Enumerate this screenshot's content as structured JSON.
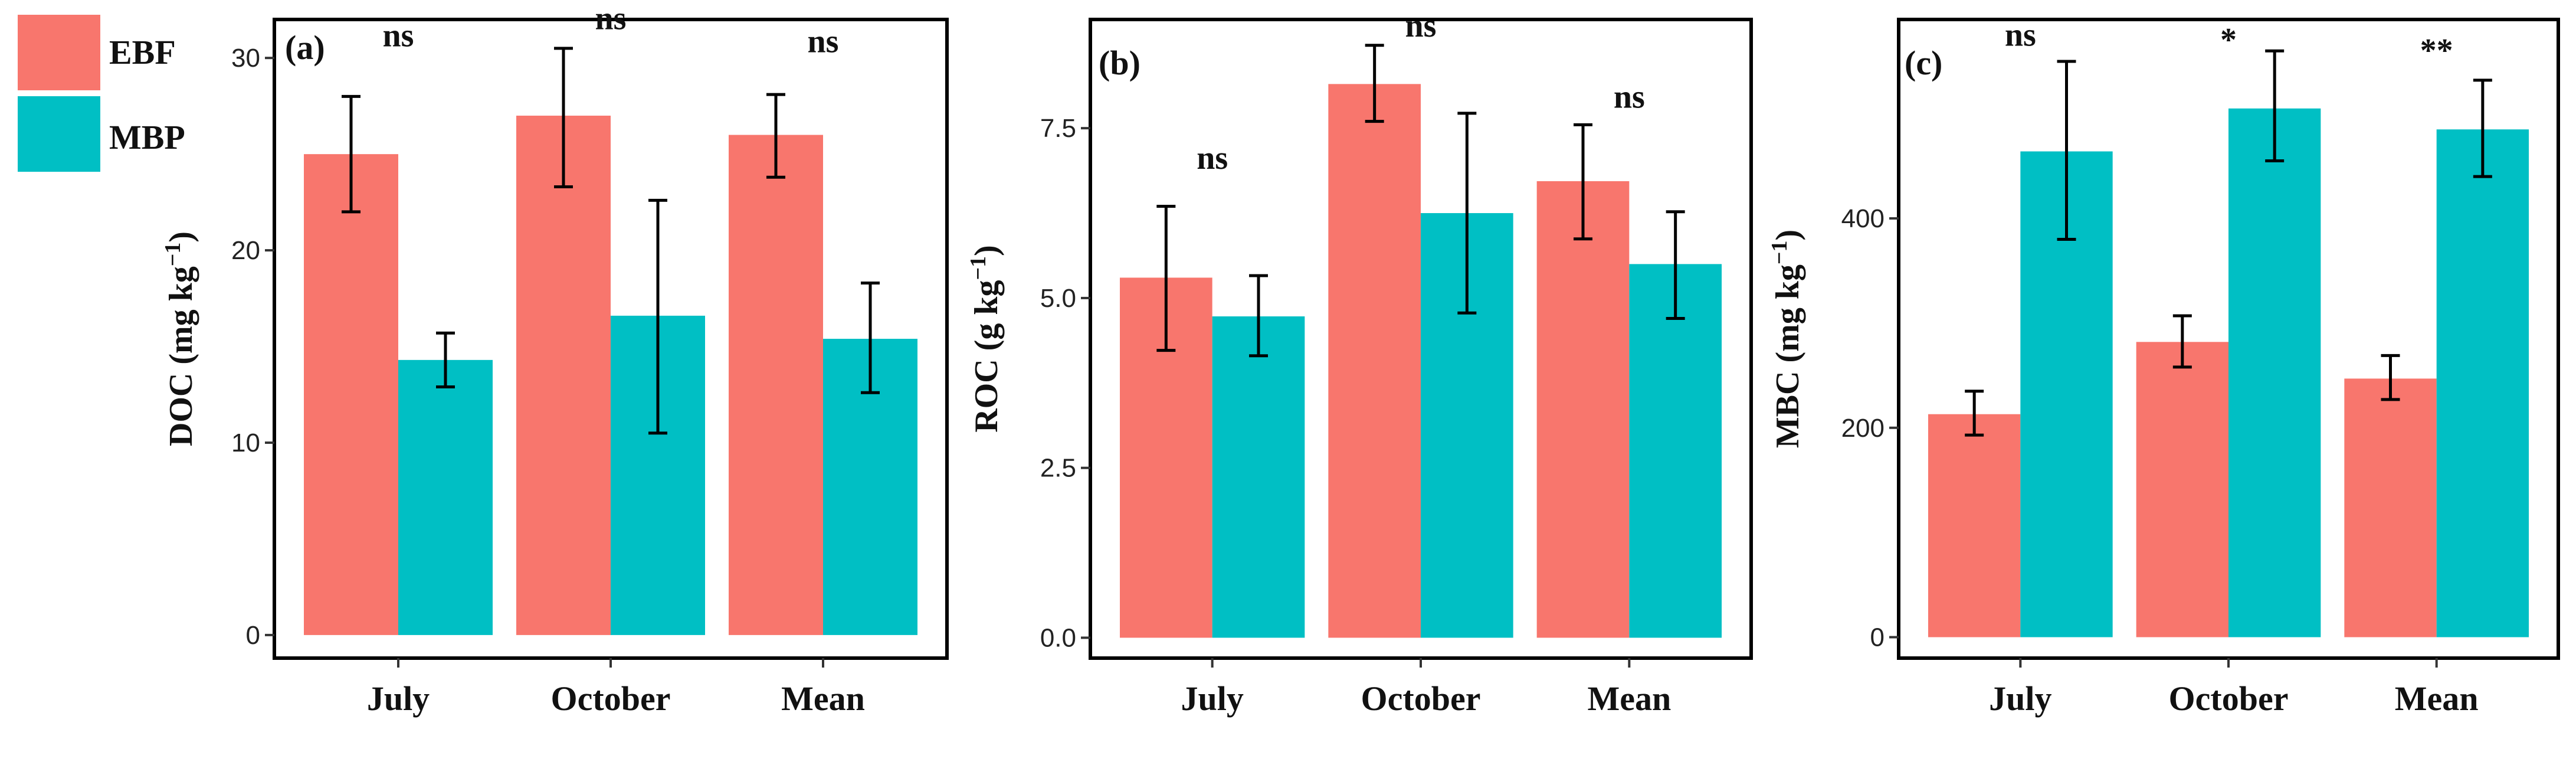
{
  "colors": {
    "EBF": "#F8766D",
    "MBP": "#00BFC4",
    "frame": "#000000",
    "error": "#000000"
  },
  "legend": {
    "position": "top-left",
    "items": [
      {
        "name": "EBF",
        "color": "#F8766D"
      },
      {
        "name": "MBP",
        "color": "#00BFC4"
      }
    ]
  },
  "chart_data": [
    {
      "type": "bar",
      "panel": "(a)",
      "ylabel": "DOC (mg kg",
      "ylabel_sup": "−1",
      "ylabel_end": ")",
      "categories": [
        "July",
        "October",
        "Mean"
      ],
      "ylim": [
        -1.2,
        32
      ],
      "yticks": [
        0,
        10,
        20,
        30
      ],
      "ytick_labels": [
        "0",
        "10",
        "20",
        "30"
      ],
      "series": [
        {
          "name": "EBF",
          "values": [
            25.0,
            27.0,
            26.0
          ],
          "err_low": [
            22.0,
            23.3,
            23.8
          ],
          "err_high": [
            28.0,
            30.5,
            28.1
          ]
        },
        {
          "name": "MBP",
          "values": [
            14.3,
            16.6,
            15.4
          ],
          "err_low": [
            12.9,
            10.5,
            12.6
          ],
          "err_high": [
            15.7,
            22.6,
            18.3
          ]
        }
      ],
      "significance": [
        {
          "label": "ns",
          "value": 30.6
        },
        {
          "label": "ns",
          "value": 31.5
        },
        {
          "label": "ns",
          "value": 30.3
        }
      ]
    },
    {
      "type": "bar",
      "panel": "(b)",
      "ylabel": "ROC (g kg",
      "ylabel_sup": "−1",
      "ylabel_end": ")",
      "categories": [
        "July",
        "October",
        "Mean"
      ],
      "ylim": [
        -0.3,
        9.1
      ],
      "yticks": [
        0,
        2.5,
        5,
        7.5
      ],
      "ytick_labels": [
        "0.0",
        "2.5",
        "5.0",
        "7.5"
      ],
      "series": [
        {
          "name": "EBF",
          "values": [
            5.3,
            8.15,
            6.72
          ],
          "err_low": [
            4.23,
            7.6,
            5.87
          ],
          "err_high": [
            6.35,
            8.72,
            7.55
          ]
        },
        {
          "name": "MBP",
          "values": [
            4.73,
            6.25,
            5.5
          ],
          "err_low": [
            4.15,
            4.78,
            4.7
          ],
          "err_high": [
            5.33,
            7.72,
            6.27
          ]
        }
      ],
      "significance": [
        {
          "label": "ns",
          "value": 6.9
        },
        {
          "label": "ns",
          "value": 8.85
        },
        {
          "label": "ns",
          "value": 7.8
        }
      ]
    },
    {
      "type": "bar",
      "panel": "(c)",
      "ylabel": "MBC (mg kg",
      "ylabel_sup": "−1",
      "ylabel_end": ")",
      "categories": [
        "July",
        "October",
        "Mean"
      ],
      "ylim": [
        -20,
        590
      ],
      "yticks": [
        0,
        200,
        400
      ],
      "ytick_labels": [
        "0",
        "200",
        "400"
      ],
      "series": [
        {
          "name": "EBF",
          "values": [
            213,
            282,
            247
          ],
          "err_low": [
            193,
            258,
            227
          ],
          "err_high": [
            235,
            307,
            269
          ]
        },
        {
          "name": "MBP",
          "values": [
            464,
            505,
            485
          ],
          "err_low": [
            380,
            455,
            440
          ],
          "err_high": [
            550,
            560,
            532
          ]
        }
      ],
      "significance": [
        {
          "label": "ns",
          "value": 565
        },
        {
          "label": "*",
          "value": 560
        },
        {
          "label": "**",
          "value": 550
        }
      ]
    }
  ]
}
